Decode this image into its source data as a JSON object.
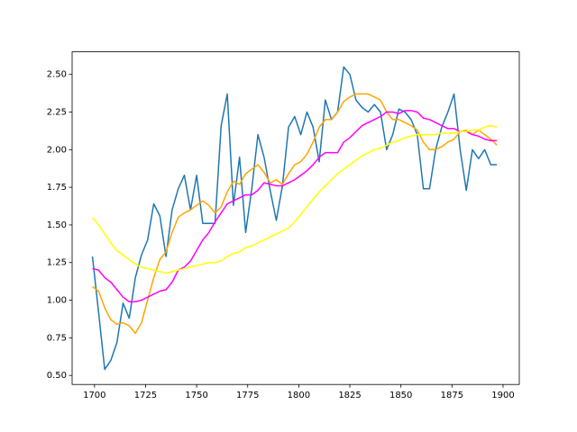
{
  "chart_data": {
    "type": "line",
    "x": [
      1699,
      1702,
      1705,
      1708,
      1711,
      1714,
      1717,
      1720,
      1723,
      1726,
      1729,
      1732,
      1735,
      1738,
      1741,
      1744,
      1747,
      1750,
      1753,
      1756,
      1759,
      1762,
      1765,
      1768,
      1771,
      1774,
      1777,
      1780,
      1783,
      1786,
      1789,
      1792,
      1795,
      1798,
      1801,
      1804,
      1807,
      1810,
      1813,
      1816,
      1819,
      1822,
      1825,
      1828,
      1831,
      1834,
      1837,
      1840,
      1843,
      1846,
      1849,
      1852,
      1855,
      1858,
      1861,
      1864,
      1867,
      1870,
      1873,
      1876,
      1879,
      1882,
      1885,
      1888,
      1891,
      1894,
      1897
    ],
    "series": [
      {
        "color": "#1f77b4",
        "values": [
          1.29,
          0.92,
          0.54,
          0.6,
          0.72,
          0.98,
          0.88,
          1.15,
          1.3,
          1.4,
          1.64,
          1.56,
          1.29,
          1.6,
          1.74,
          1.83,
          1.6,
          1.83,
          1.51,
          1.51,
          1.51,
          2.16,
          2.37,
          1.63,
          1.95,
          1.45,
          1.74,
          2.1,
          1.95,
          1.73,
          1.53,
          1.76,
          2.15,
          2.22,
          2.1,
          2.25,
          2.15,
          1.92,
          2.33,
          2.2,
          2.25,
          2.55,
          2.5,
          2.33,
          2.28,
          2.25,
          2.3,
          2.25,
          2.0,
          2.1,
          2.27,
          2.25,
          2.2,
          2.1,
          1.74,
          1.74,
          2.0,
          2.15,
          2.25,
          2.37,
          2.0,
          1.73,
          2.0,
          1.94,
          2.0,
          1.9,
          1.9
        ]
      },
      {
        "color": "#ffa500",
        "values": [
          1.09,
          1.06,
          0.95,
          0.87,
          0.84,
          0.85,
          0.83,
          0.78,
          0.85,
          1.0,
          1.15,
          1.27,
          1.32,
          1.45,
          1.55,
          1.58,
          1.6,
          1.63,
          1.66,
          1.63,
          1.58,
          1.62,
          1.72,
          1.79,
          1.77,
          1.84,
          1.87,
          1.9,
          1.85,
          1.78,
          1.8,
          1.77,
          1.84,
          1.9,
          1.92,
          1.97,
          2.05,
          2.15,
          2.2,
          2.2,
          2.25,
          2.32,
          2.35,
          2.37,
          2.37,
          2.37,
          2.35,
          2.33,
          2.25,
          2.2,
          2.2,
          2.18,
          2.16,
          2.13,
          2.05,
          2.0,
          2.0,
          2.02,
          2.05,
          2.07,
          2.12,
          2.13,
          2.1,
          2.13,
          2.1,
          2.07,
          2.03
        ]
      },
      {
        "color": "#ff00ff",
        "values": [
          1.21,
          1.2,
          1.15,
          1.12,
          1.07,
          1.02,
          0.99,
          0.99,
          1.0,
          1.02,
          1.04,
          1.06,
          1.07,
          1.12,
          1.2,
          1.22,
          1.26,
          1.33,
          1.4,
          1.45,
          1.52,
          1.58,
          1.64,
          1.66,
          1.68,
          1.7,
          1.7,
          1.73,
          1.78,
          1.77,
          1.76,
          1.76,
          1.78,
          1.8,
          1.83,
          1.86,
          1.9,
          1.95,
          1.98,
          1.98,
          1.98,
          2.05,
          2.08,
          2.12,
          2.16,
          2.18,
          2.2,
          2.22,
          2.25,
          2.25,
          2.24,
          2.26,
          2.26,
          2.25,
          2.21,
          2.2,
          2.18,
          2.16,
          2.14,
          2.14,
          2.12,
          2.12,
          2.1,
          2.09,
          2.07,
          2.06,
          2.06
        ]
      },
      {
        "color": "#ffff00",
        "values": [
          1.55,
          1.5,
          1.44,
          1.38,
          1.33,
          1.3,
          1.27,
          1.24,
          1.22,
          1.21,
          1.2,
          1.19,
          1.18,
          1.19,
          1.2,
          1.21,
          1.22,
          1.23,
          1.24,
          1.25,
          1.25,
          1.26,
          1.29,
          1.31,
          1.32,
          1.35,
          1.36,
          1.38,
          1.4,
          1.42,
          1.44,
          1.46,
          1.48,
          1.52,
          1.57,
          1.62,
          1.67,
          1.72,
          1.76,
          1.8,
          1.84,
          1.87,
          1.9,
          1.93,
          1.96,
          1.98,
          2.0,
          2.01,
          2.03,
          2.05,
          2.06,
          2.08,
          2.09,
          2.1,
          2.1,
          2.1,
          2.1,
          2.11,
          2.11,
          2.11,
          2.12,
          2.12,
          2.13,
          2.13,
          2.15,
          2.16,
          2.15
        ]
      }
    ],
    "xlim": [
      1689.05,
      1907.95
    ],
    "ylim": [
      0.44,
      2.65
    ],
    "xticks": [
      1700,
      1725,
      1750,
      1775,
      1800,
      1825,
      1850,
      1875,
      1900
    ],
    "yticks": [
      {
        "value": 0.5,
        "label": "0.50"
      },
      {
        "value": 0.75,
        "label": "0.75"
      },
      {
        "value": 1.0,
        "label": "1.00"
      },
      {
        "value": 1.25,
        "label": "1.25"
      },
      {
        "value": 1.5,
        "label": "1.50"
      },
      {
        "value": 1.75,
        "label": "1.75"
      },
      {
        "value": 2.0,
        "label": "2.00"
      },
      {
        "value": 2.25,
        "label": "2.25"
      },
      {
        "value": 2.5,
        "label": "2.50"
      }
    ]
  }
}
